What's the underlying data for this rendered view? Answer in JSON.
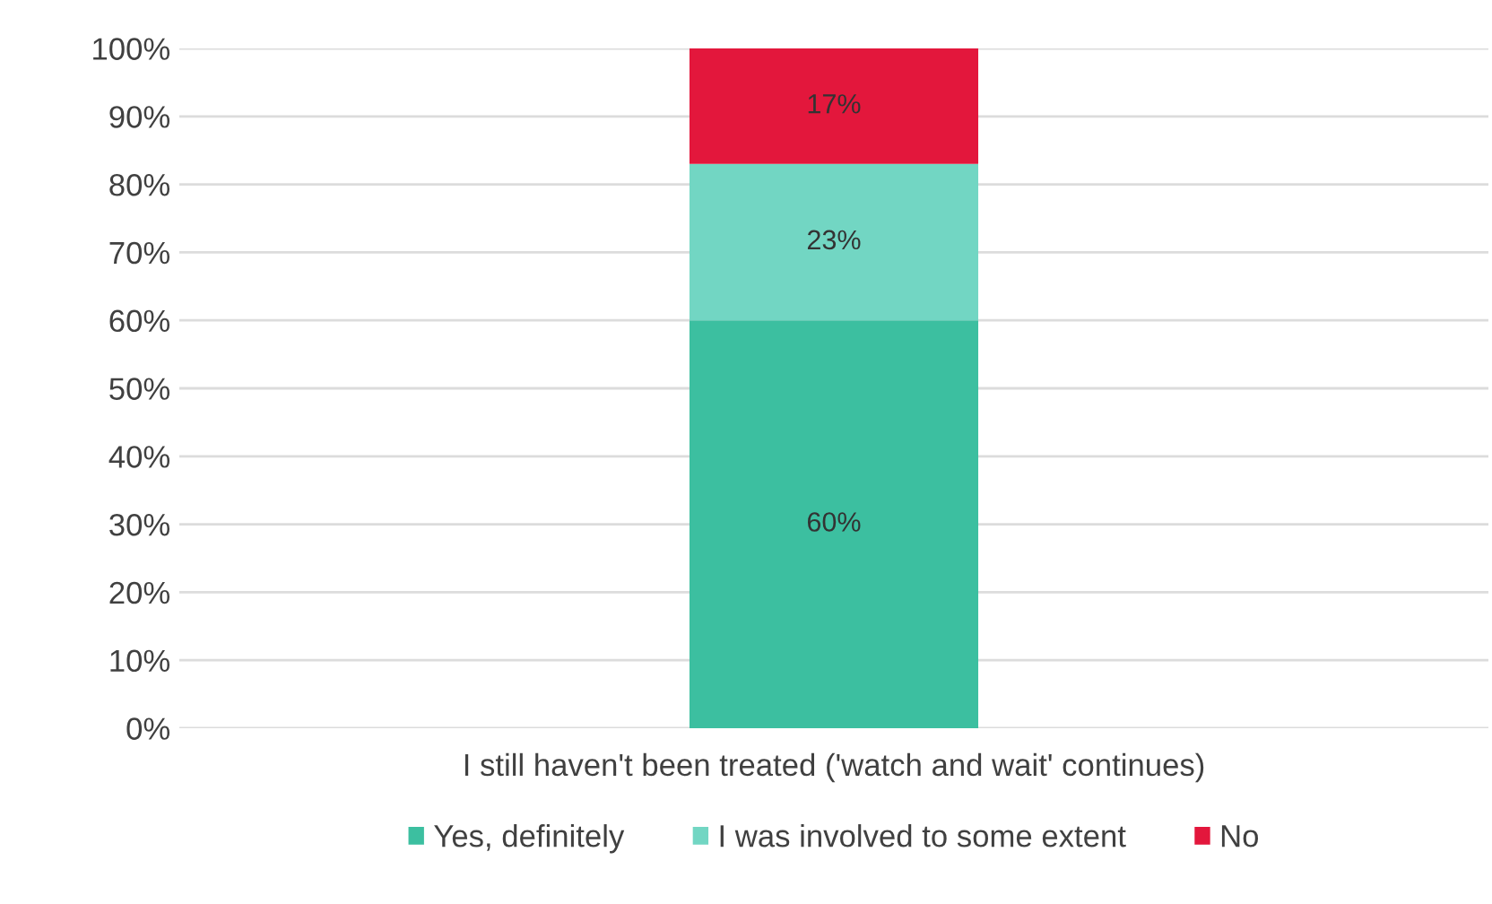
{
  "chart_data": {
    "type": "bar",
    "stacked": true,
    "categories": [
      "I still haven't been treated ('watch and wait' continues)"
    ],
    "series": [
      {
        "name": "Yes, definitely",
        "color": "#3cbfa0",
        "values": [
          60
        ],
        "value_labels": [
          "60%"
        ]
      },
      {
        "name": "I was involved to some extent",
        "color": "#72d6c3",
        "values": [
          23
        ],
        "value_labels": [
          "23%"
        ]
      },
      {
        "name": "No",
        "color": "#e3173c",
        "values": [
          17
        ],
        "value_labels": [
          "17%"
        ]
      }
    ],
    "ylim": [
      0,
      100
    ],
    "yticks": [
      {
        "value": 0,
        "label": "0%"
      },
      {
        "value": 10,
        "label": "10%"
      },
      {
        "value": 20,
        "label": "20%"
      },
      {
        "value": 30,
        "label": "30%"
      },
      {
        "value": 40,
        "label": "40%"
      },
      {
        "value": 50,
        "label": "50%"
      },
      {
        "value": 60,
        "label": "60%"
      },
      {
        "value": 70,
        "label": "70%"
      },
      {
        "value": 80,
        "label": "80%"
      },
      {
        "value": 90,
        "label": "90%"
      },
      {
        "value": 100,
        "label": "100%"
      }
    ],
    "grid": "y",
    "legend": "bottom"
  }
}
